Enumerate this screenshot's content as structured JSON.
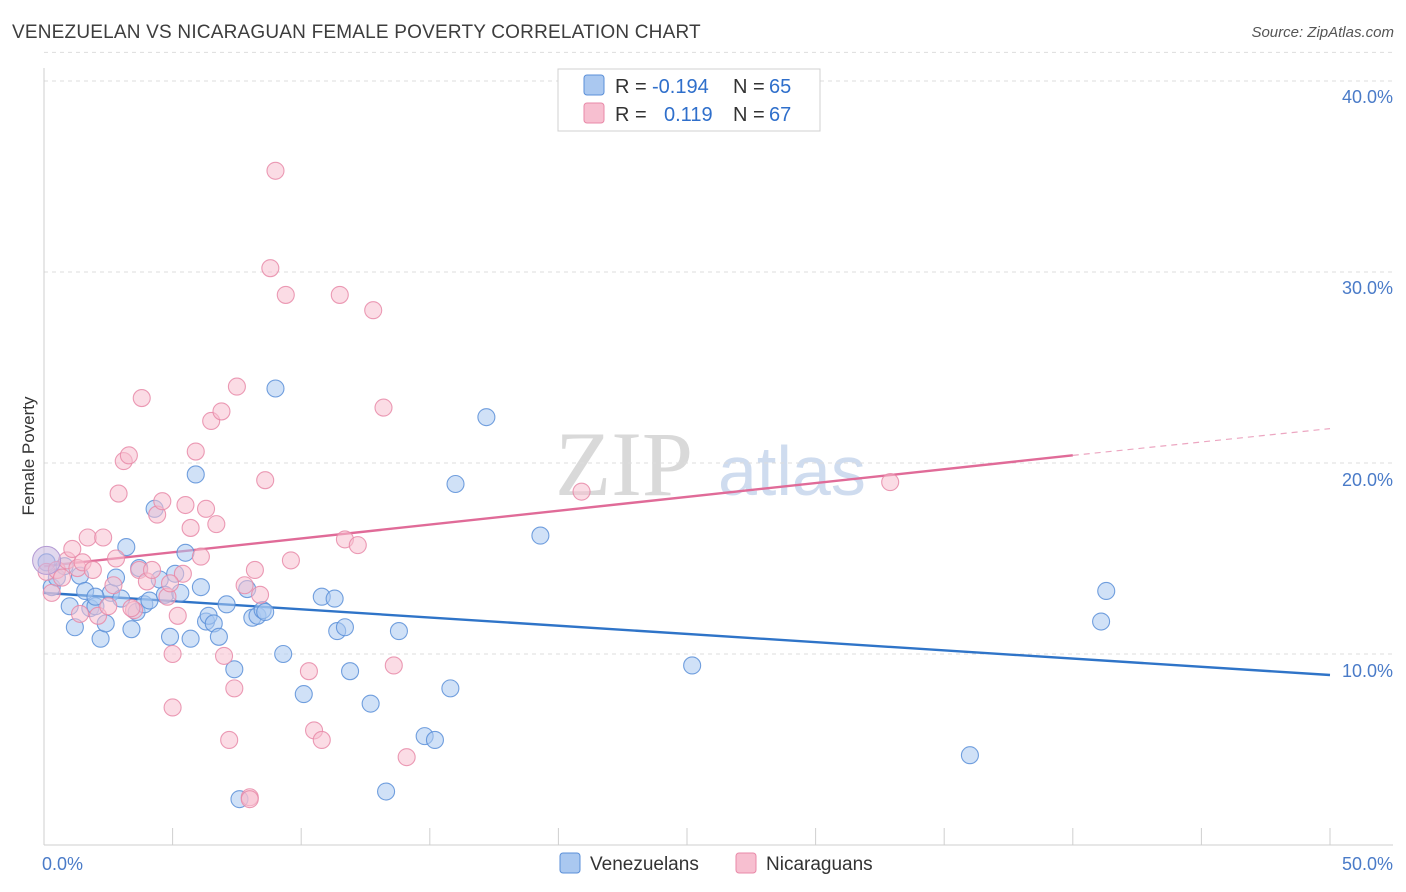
{
  "title": "VENEZUELAN VS NICARAGUAN FEMALE POVERTY CORRELATION CHART",
  "source": "Source: ZipAtlas.com",
  "colors": {
    "venezuelans_fill": "#aac8f0",
    "venezuelans_stroke": "#5b8fd8",
    "venezuelans_line": "#2f74c8",
    "nicaraguans_fill": "#f7bfd0",
    "nicaraguans_stroke": "#e889a8",
    "nicaraguans_line": "#e06b98",
    "grid": "#dddddd",
    "tick_label": "#4a7bc8"
  },
  "legend": {
    "row1": {
      "r_label": "R =",
      "r_value": "-0.194",
      "n_label": "N =",
      "n_value": "65"
    },
    "row2": {
      "r_label": "R =",
      "r_value": "0.119",
      "n_label": "N =",
      "n_value": "67"
    }
  },
  "watermark": {
    "zip": "ZIP",
    "atlas": "atlas"
  },
  "chart_data": {
    "type": "scatter",
    "title": "VENEZUELAN VS NICARAGUAN FEMALE POVERTY CORRELATION CHART",
    "xlabel": "",
    "ylabel": "Female Poverty",
    "xlim": [
      0,
      50
    ],
    "ylim": [
      0,
      41.5
    ],
    "x_tick_labels": [
      "0.0%",
      "50.0%"
    ],
    "y_ticks": [
      10,
      20,
      30,
      40
    ],
    "y_tick_labels": [
      "10.0%",
      "20.0%",
      "30.0%",
      "40.0%"
    ],
    "grid": true,
    "legend_position": "bottom",
    "series": [
      {
        "name": "Venezuelans",
        "r": -0.194,
        "n": 65,
        "trend": {
          "x0": 0,
          "y0": 13.2,
          "x1": 50,
          "y1": 8.9
        },
        "points": [
          [
            0.1,
            14.8
          ],
          [
            0.3,
            13.5
          ],
          [
            0.5,
            14.0
          ],
          [
            0.8,
            14.6
          ],
          [
            1.0,
            12.5
          ],
          [
            1.2,
            11.4
          ],
          [
            1.4,
            14.1
          ],
          [
            1.6,
            13.3
          ],
          [
            1.8,
            12.4
          ],
          [
            2.0,
            12.5
          ],
          [
            2.2,
            10.8
          ],
          [
            2.4,
            11.6
          ],
          [
            2.6,
            13.2
          ],
          [
            2.8,
            14.0
          ],
          [
            3.0,
            12.9
          ],
          [
            3.2,
            15.6
          ],
          [
            3.4,
            11.3
          ],
          [
            3.6,
            12.2
          ],
          [
            3.9,
            12.6
          ],
          [
            4.1,
            12.8
          ],
          [
            4.3,
            17.6
          ],
          [
            4.5,
            13.9
          ],
          [
            4.7,
            13.1
          ],
          [
            4.9,
            10.9
          ],
          [
            5.1,
            14.2
          ],
          [
            5.3,
            13.2
          ],
          [
            5.5,
            15.3
          ],
          [
            5.7,
            10.8
          ],
          [
            5.9,
            19.4
          ],
          [
            6.1,
            13.5
          ],
          [
            6.3,
            11.7
          ],
          [
            6.4,
            12.0
          ],
          [
            6.6,
            11.6
          ],
          [
            6.8,
            10.9
          ],
          [
            7.1,
            12.6
          ],
          [
            7.4,
            9.2
          ],
          [
            7.6,
            2.4
          ],
          [
            7.9,
            13.4
          ],
          [
            8.1,
            11.9
          ],
          [
            8.3,
            12.0
          ],
          [
            8.5,
            12.3
          ],
          [
            8.6,
            12.2
          ],
          [
            9.0,
            23.9
          ],
          [
            9.3,
            10.0
          ],
          [
            10.1,
            7.9
          ],
          [
            10.8,
            13.0
          ],
          [
            11.3,
            12.9
          ],
          [
            11.4,
            11.2
          ],
          [
            11.7,
            11.4
          ],
          [
            11.9,
            9.1
          ],
          [
            12.7,
            7.4
          ],
          [
            13.3,
            2.8
          ],
          [
            13.8,
            11.2
          ],
          [
            14.8,
            5.7
          ],
          [
            15.2,
            5.5
          ],
          [
            15.8,
            8.2
          ],
          [
            16.0,
            18.9
          ],
          [
            17.2,
            22.4
          ],
          [
            19.3,
            16.2
          ],
          [
            25.2,
            9.4
          ],
          [
            36.0,
            4.7
          ],
          [
            41.1,
            11.7
          ],
          [
            41.3,
            13.3
          ],
          [
            2.0,
            13.0
          ],
          [
            3.7,
            14.5
          ]
        ]
      },
      {
        "name": "Nicaraguans",
        "r": 0.119,
        "n": 67,
        "trend": {
          "x0": 0,
          "y0": 14.6,
          "x1": 40,
          "y1": 20.4,
          "dash_x1": 50,
          "dash_y1": 21.8
        },
        "points": [
          [
            0.1,
            14.3
          ],
          [
            0.3,
            13.2
          ],
          [
            0.5,
            14.4
          ],
          [
            0.7,
            14.0
          ],
          [
            0.9,
            14.9
          ],
          [
            1.1,
            15.5
          ],
          [
            1.3,
            14.5
          ],
          [
            1.5,
            14.8
          ],
          [
            1.7,
            16.1
          ],
          [
            1.9,
            14.4
          ],
          [
            2.1,
            12.0
          ],
          [
            2.3,
            16.1
          ],
          [
            2.5,
            12.5
          ],
          [
            2.7,
            13.6
          ],
          [
            2.9,
            18.4
          ],
          [
            3.1,
            20.1
          ],
          [
            3.3,
            20.4
          ],
          [
            3.5,
            12.3
          ],
          [
            3.7,
            14.4
          ],
          [
            3.8,
            23.4
          ],
          [
            4.0,
            13.8
          ],
          [
            4.2,
            14.4
          ],
          [
            4.4,
            17.3
          ],
          [
            4.6,
            18.0
          ],
          [
            4.8,
            13.0
          ],
          [
            5.0,
            10.0
          ],
          [
            5.2,
            12.0
          ],
          [
            5.4,
            14.2
          ],
          [
            5.5,
            17.8
          ],
          [
            5.7,
            16.6
          ],
          [
            5.9,
            20.6
          ],
          [
            6.1,
            15.1
          ],
          [
            6.3,
            17.6
          ],
          [
            6.5,
            22.2
          ],
          [
            6.7,
            16.8
          ],
          [
            6.9,
            22.7
          ],
          [
            7.0,
            9.9
          ],
          [
            7.2,
            5.5
          ],
          [
            7.4,
            8.2
          ],
          [
            7.5,
            24.0
          ],
          [
            7.8,
            13.6
          ],
          [
            8.0,
            2.5
          ],
          [
            8.2,
            14.4
          ],
          [
            8.4,
            13.1
          ],
          [
            8.6,
            19.1
          ],
          [
            8.8,
            30.2
          ],
          [
            9.0,
            35.3
          ],
          [
            9.4,
            28.8
          ],
          [
            9.6,
            14.9
          ],
          [
            10.3,
            9.1
          ],
          [
            10.5,
            6.0
          ],
          [
            10.8,
            5.5
          ],
          [
            11.5,
            28.8
          ],
          [
            11.7,
            16.0
          ],
          [
            12.2,
            15.7
          ],
          [
            12.8,
            28.0
          ],
          [
            13.2,
            22.9
          ],
          [
            13.6,
            9.4
          ],
          [
            14.1,
            4.6
          ],
          [
            5.0,
            7.2
          ],
          [
            3.4,
            12.4
          ],
          [
            4.9,
            13.7
          ],
          [
            8.0,
            2.4
          ],
          [
            20.9,
            18.5
          ],
          [
            32.9,
            19.0
          ],
          [
            1.4,
            12.1
          ],
          [
            2.8,
            15.0
          ]
        ]
      }
    ]
  },
  "bottom_legend": {
    "item1": "Venezuelans",
    "item2": "Nicaraguans"
  }
}
